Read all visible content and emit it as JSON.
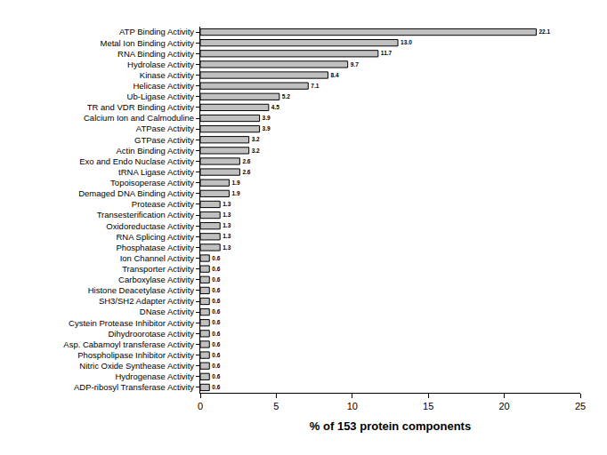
{
  "chart_data": {
    "type": "bar",
    "orientation": "horizontal",
    "x_label": "% of 153 protein components",
    "categories": [
      "ATP Binding Activity",
      "Metal Ion Binding Activity",
      "RNA Binding Activity",
      "Hydrolase Activity",
      "Kinase Activity",
      "Helicase Activity",
      "Ub-Ligase Activity",
      "TR and VDR Binding Activity",
      "Calcium Ion and Calmoduline",
      "ATPase Activity",
      "GTPase Activity",
      "Actin Binding Activity",
      "Exo and Endo Nuclase Activity",
      "tRNA Ligase Activity",
      "Topoisoperase Activity",
      "Demaged DNA Binding Activity",
      "Protease Activity",
      "Transesterification Activity",
      "Oxidoreductase Activity",
      "RNA Splicing Activity",
      "Phosphatase Activity",
      "Ion Channel Activity",
      "Transporter Activity",
      "Carboxylase Activity",
      "Histone Deacetylase Activity",
      "SH3/SH2 Adapter Activity",
      "DNase Activity",
      "Cystein Protease Inhibitor Activity",
      "Dihydroorotase Activity",
      "Asp. Cabamoyl transferase Activity",
      "Phospholipase Inhibitor Activity",
      "Nitric Oxide Synthease Activity",
      "Hydrogenase Activity",
      "ADP-ribosyl Transferase Activity"
    ],
    "values": [
      22.1,
      13.0,
      11.7,
      9.7,
      8.4,
      7.1,
      5.2,
      4.5,
      3.9,
      3.9,
      3.2,
      3.2,
      2.6,
      2.6,
      1.9,
      1.9,
      1.3,
      1.3,
      1.3,
      1.3,
      1.3,
      0.6,
      0.6,
      0.6,
      0.6,
      0.6,
      0.6,
      0.6,
      0.6,
      0.6,
      0.6,
      0.6,
      0.6,
      0.6
    ],
    "value_labels": [
      "22.1",
      "13.0",
      "11.7",
      "9.7",
      "8.4",
      "7.1",
      "5.2",
      "4.5",
      "3.9",
      "3.9",
      "3.2",
      "3.2",
      "2.6",
      "2.6",
      "1.9",
      "1.9",
      "1.3",
      "1.3",
      "1.3",
      "1.3",
      "1.3",
      "0.6",
      "0.6",
      "0.6",
      "0.6",
      "0.6",
      "0.6",
      "0.6",
      "0.6",
      "0.6",
      "0.6",
      "0.6",
      "0.6",
      "0.6"
    ],
    "data_labels": true,
    "color": "#c0c0c0",
    "xlim": [
      0,
      25
    ],
    "xticks": [
      0,
      5,
      10,
      15,
      20,
      25
    ],
    "grid": false
  }
}
